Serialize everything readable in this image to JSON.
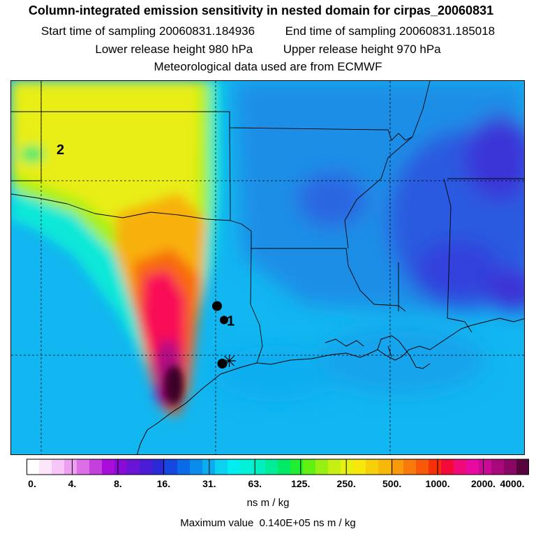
{
  "header": {
    "title": "Column-integrated emission sensitivity in nested domain for cirpas_20060831",
    "start_label": "Start time of sampling",
    "start_value": "20060831.184936",
    "end_label": "End time of sampling",
    "end_value": "20060831.185018",
    "lower_label": "Lower release height",
    "lower_value": "980 hPa",
    "upper_label": "Upper release height",
    "upper_value": "970 hPa",
    "met_text": "Meteorological data used are from ECMWF"
  },
  "map": {
    "markers": [
      {
        "name": "release-point-1",
        "label": "1",
        "lon": -95.1,
        "lat": 30.55
      },
      {
        "name": "release-point-2",
        "label": "2",
        "lon": -99.9,
        "lat": 35.3
      },
      {
        "name": "trajectory-point-a",
        "label": "",
        "lon": -95.3,
        "lat": 30.95
      },
      {
        "name": "trajectory-point-b",
        "label": "",
        "lon": -95.15,
        "lat": 29.3
      }
    ]
  },
  "colorbar": {
    "labels": [
      "0.",
      "4.",
      "8.",
      "16.",
      "31.",
      "63.",
      "125.",
      "250.",
      "500.",
      "1000.",
      "2000.",
      "4000."
    ],
    "colors": [
      "#ffffff",
      "#fce6fc",
      "#f7c5f7",
      "#ee9ef0",
      "#dc6fe6",
      "#c43fdc",
      "#a80dd9",
      "#8a0bd6",
      "#6a14d6",
      "#4c1bd6",
      "#2a2ad6",
      "#1448e0",
      "#0a6ae8",
      "#0a8cec",
      "#0aaef0",
      "#0ad2f0",
      "#00eef0",
      "#00f0d8",
      "#00eec0",
      "#00ec98",
      "#00ea68",
      "#20ee30",
      "#62f012",
      "#98f012",
      "#c6f012",
      "#e6f012",
      "#f6e80a",
      "#f8d00a",
      "#f8b80a",
      "#f89a0a",
      "#f87a0a",
      "#f8580a",
      "#f8300a",
      "#f40a38",
      "#f00a78",
      "#e80aa0",
      "#c80a96",
      "#a8087c",
      "#880664",
      "#58043c"
    ],
    "unit": "ns m / kg"
  },
  "footer": {
    "max_label": "Maximum value",
    "max_value": "0.140E+05 ns m / kg"
  }
}
